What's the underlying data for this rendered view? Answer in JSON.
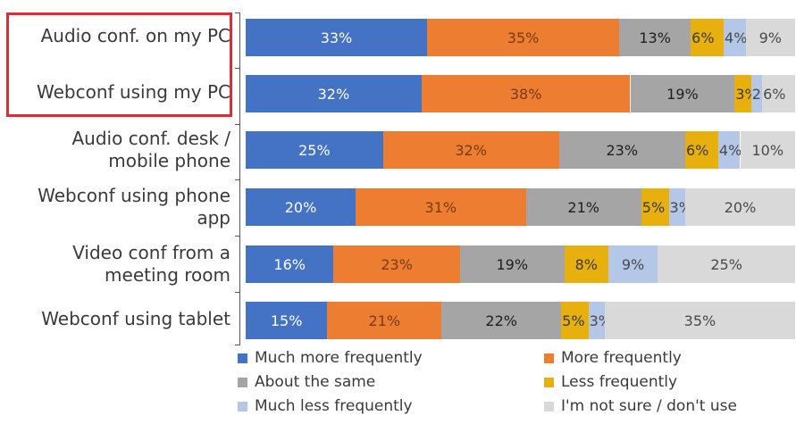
{
  "chart_data": {
    "type": "bar",
    "orientation": "horizontal",
    "stacked": true,
    "percent_stacked": true,
    "title": "",
    "xlabel": "",
    "ylabel": "",
    "categories": [
      "Audio conf. on my PC",
      "Webconf using my PC",
      "Audio conf. desk / mobile phone",
      "Webconf using phone app",
      "Video conf from a meeting room",
      "Webconf using tablet"
    ],
    "category_lines": [
      [
        "Audio conf. on my PC"
      ],
      [
        "Webconf using my PC"
      ],
      [
        "Audio conf. desk /",
        "mobile phone"
      ],
      [
        "Webconf using phone",
        "app"
      ],
      [
        "Video conf from a",
        "meeting room"
      ],
      [
        "Webconf using tablet"
      ]
    ],
    "highlighted_categories": [
      "Audio conf. on my PC",
      "Webconf using my PC"
    ],
    "highlight_color": "#e02b35",
    "series": [
      {
        "name": "Much more frequently",
        "color": "#4472c4",
        "label_color": "#ffffff",
        "values": [
          33,
          32,
          25,
          20,
          16,
          15
        ]
      },
      {
        "name": "More frequently",
        "color": "#ed7d31",
        "label_color": "#7a3a12",
        "values": [
          35,
          38,
          32,
          31,
          23,
          21
        ]
      },
      {
        "name": "About the same",
        "color": "#a5a5a5",
        "label_color": "#1e1e1e",
        "values": [
          13,
          19,
          23,
          21,
          19,
          22
        ]
      },
      {
        "name": "Less frequently",
        "color": "#e8b00e",
        "label_color": "#3a3a3a",
        "values": [
          6,
          3,
          6,
          5,
          8,
          5
        ]
      },
      {
        "name": "Much less frequently",
        "color": "#b4c7e7",
        "label_color": "#4a4a4a",
        "values": [
          4,
          2,
          4,
          3,
          9,
          3
        ]
      },
      {
        "name": "I'm not sure / don't use",
        "color": "#d9d9d9",
        "label_color": "#4a4a4a",
        "values": [
          9,
          6,
          10,
          20,
          25,
          35
        ]
      }
    ],
    "data_labels": [
      [
        "33%",
        "35%",
        "13%",
        "6%",
        "4%",
        "9%"
      ],
      [
        "32%",
        "38%",
        "19%",
        "3%",
        "2%",
        "6%"
      ],
      [
        "25%",
        "32%",
        "23%",
        "6%",
        "4%",
        "10%"
      ],
      [
        "20%",
        "31%",
        "21%",
        "5%",
        "3%",
        "20%"
      ],
      [
        "16%",
        "23%",
        "19%",
        "8%",
        "9%",
        "25%"
      ],
      [
        "15%",
        "21%",
        "22%",
        "5%",
        "3%",
        "35%"
      ]
    ],
    "xlim": [
      0,
      100
    ],
    "grid": false,
    "legend_position": "bottom"
  }
}
